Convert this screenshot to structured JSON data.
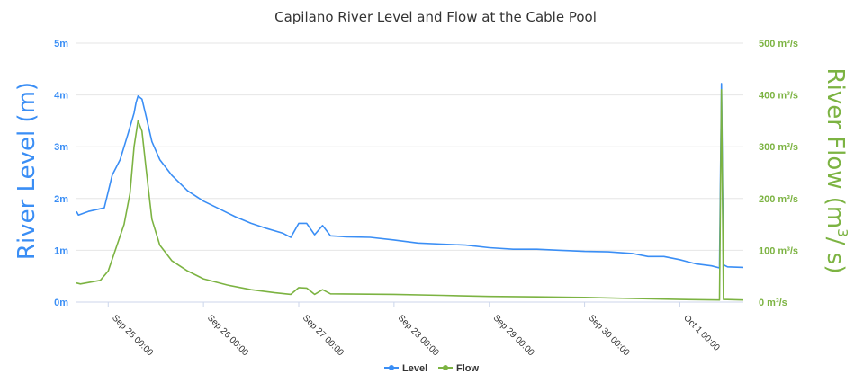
{
  "chart_data": {
    "type": "line",
    "title": "Capilano River Level and Flow at the Cable Pool",
    "y_left": {
      "label_main": "River Level (m)",
      "ticks": [
        "0m",
        "1m",
        "2m",
        "3m",
        "4m",
        "5m"
      ],
      "range": [
        0,
        5
      ],
      "color": "#3a8ef5"
    },
    "y_right": {
      "label_main": "River Flow (m",
      "label_sup": "3",
      "label_end": "/ s)",
      "ticks": [
        "0 m³/s",
        "100 m³/s",
        "200 m³/s",
        "300 m³/s",
        "400 m³/s",
        "500 m³/s"
      ],
      "range": [
        0,
        500
      ],
      "color": "#7cb342"
    },
    "x": {
      "ticks": [
        "Sep 25 00:00",
        "Sep 26 00:00",
        "Sep 27 00:00",
        "Sep 28 00:00",
        "Sep 29 00:00",
        "Sep 30 00:00",
        "Oct 1 00:00"
      ],
      "range": [
        "2023-09-24 16:00",
        "2023-10-01 16:00"
      ]
    },
    "grid": true,
    "legend_position": "bottom-center",
    "series": [
      {
        "name": "Level",
        "axis": "left",
        "color": "#3a8ef5",
        "points": [
          [
            "2023-09-24 16:00",
            1.75
          ],
          [
            "2023-09-24 16:30",
            1.68
          ],
          [
            "2023-09-24 19:00",
            1.75
          ],
          [
            "2023-09-24 23:00",
            1.82
          ],
          [
            "2023-09-25 01:00",
            2.45
          ],
          [
            "2023-09-25 03:00",
            2.75
          ],
          [
            "2023-09-25 05:00",
            3.25
          ],
          [
            "2023-09-25 06:30",
            3.65
          ],
          [
            "2023-09-25 07:00",
            3.85
          ],
          [
            "2023-09-25 07:30",
            3.98
          ],
          [
            "2023-09-25 08:30",
            3.92
          ],
          [
            "2023-09-25 09:30",
            3.6
          ],
          [
            "2023-09-25 11:00",
            3.1
          ],
          [
            "2023-09-25 13:00",
            2.75
          ],
          [
            "2023-09-25 16:00",
            2.45
          ],
          [
            "2023-09-25 20:00",
            2.15
          ],
          [
            "2023-09-26 00:00",
            1.95
          ],
          [
            "2023-09-26 04:00",
            1.8
          ],
          [
            "2023-09-26 08:00",
            1.65
          ],
          [
            "2023-09-26 12:00",
            1.52
          ],
          [
            "2023-09-26 16:00",
            1.42
          ],
          [
            "2023-09-26 20:00",
            1.33
          ],
          [
            "2023-09-26 22:00",
            1.25
          ],
          [
            "2023-09-27 00:00",
            1.52
          ],
          [
            "2023-09-27 02:00",
            1.52
          ],
          [
            "2023-09-27 04:00",
            1.3
          ],
          [
            "2023-09-27 06:00",
            1.48
          ],
          [
            "2023-09-27 08:00",
            1.28
          ],
          [
            "2023-09-27 12:00",
            1.26
          ],
          [
            "2023-09-27 18:00",
            1.25
          ],
          [
            "2023-09-28 00:00",
            1.2
          ],
          [
            "2023-09-28 06:00",
            1.14
          ],
          [
            "2023-09-28 12:00",
            1.12
          ],
          [
            "2023-09-28 18:00",
            1.1
          ],
          [
            "2023-09-29 00:00",
            1.05
          ],
          [
            "2023-09-29 06:00",
            1.02
          ],
          [
            "2023-09-29 12:00",
            1.02
          ],
          [
            "2023-09-29 18:00",
            1.0
          ],
          [
            "2023-09-30 00:00",
            0.98
          ],
          [
            "2023-09-30 06:00",
            0.97
          ],
          [
            "2023-09-30 12:00",
            0.94
          ],
          [
            "2023-09-30 16:00",
            0.88
          ],
          [
            "2023-09-30 20:00",
            0.88
          ],
          [
            "2023-10-01 00:00",
            0.82
          ],
          [
            "2023-10-01 04:00",
            0.74
          ],
          [
            "2023-10-01 08:00",
            0.7
          ],
          [
            "2023-10-01 10:00",
            0.66
          ],
          [
            "2023-10-01 10:30",
            4.22
          ],
          [
            "2023-10-01 11:00",
            0.72
          ],
          [
            "2023-10-01 12:00",
            0.68
          ],
          [
            "2023-10-01 16:00",
            0.67
          ]
        ]
      },
      {
        "name": "Flow",
        "axis": "right",
        "color": "#7cb342",
        "points": [
          [
            "2023-09-24 16:00",
            37
          ],
          [
            "2023-09-24 17:00",
            35
          ],
          [
            "2023-09-24 22:00",
            42
          ],
          [
            "2023-09-25 00:00",
            60
          ],
          [
            "2023-09-25 02:00",
            105
          ],
          [
            "2023-09-25 04:00",
            150
          ],
          [
            "2023-09-25 05:30",
            210
          ],
          [
            "2023-09-25 06:30",
            300
          ],
          [
            "2023-09-25 07:30",
            350
          ],
          [
            "2023-09-25 08:30",
            330
          ],
          [
            "2023-09-25 09:30",
            260
          ],
          [
            "2023-09-25 11:00",
            160
          ],
          [
            "2023-09-25 13:00",
            110
          ],
          [
            "2023-09-25 16:00",
            80
          ],
          [
            "2023-09-25 20:00",
            60
          ],
          [
            "2023-09-26 00:00",
            45
          ],
          [
            "2023-09-26 06:00",
            33
          ],
          [
            "2023-09-26 12:00",
            24
          ],
          [
            "2023-09-26 18:00",
            18
          ],
          [
            "2023-09-26 22:00",
            15
          ],
          [
            "2023-09-27 00:00",
            28
          ],
          [
            "2023-09-27 02:00",
            27
          ],
          [
            "2023-09-27 04:00",
            15
          ],
          [
            "2023-09-27 06:00",
            24
          ],
          [
            "2023-09-27 08:00",
            16
          ],
          [
            "2023-09-28 00:00",
            15
          ],
          [
            "2023-09-28 12:00",
            13
          ],
          [
            "2023-09-29 00:00",
            11
          ],
          [
            "2023-09-29 12:00",
            10
          ],
          [
            "2023-09-30 00:00",
            9
          ],
          [
            "2023-09-30 12:00",
            7
          ],
          [
            "2023-10-01 00:00",
            5
          ],
          [
            "2023-10-01 10:00",
            4
          ],
          [
            "2023-10-01 10:30",
            410
          ],
          [
            "2023-10-01 11:00",
            5
          ],
          [
            "2023-10-01 16:00",
            4
          ]
        ]
      }
    ]
  }
}
